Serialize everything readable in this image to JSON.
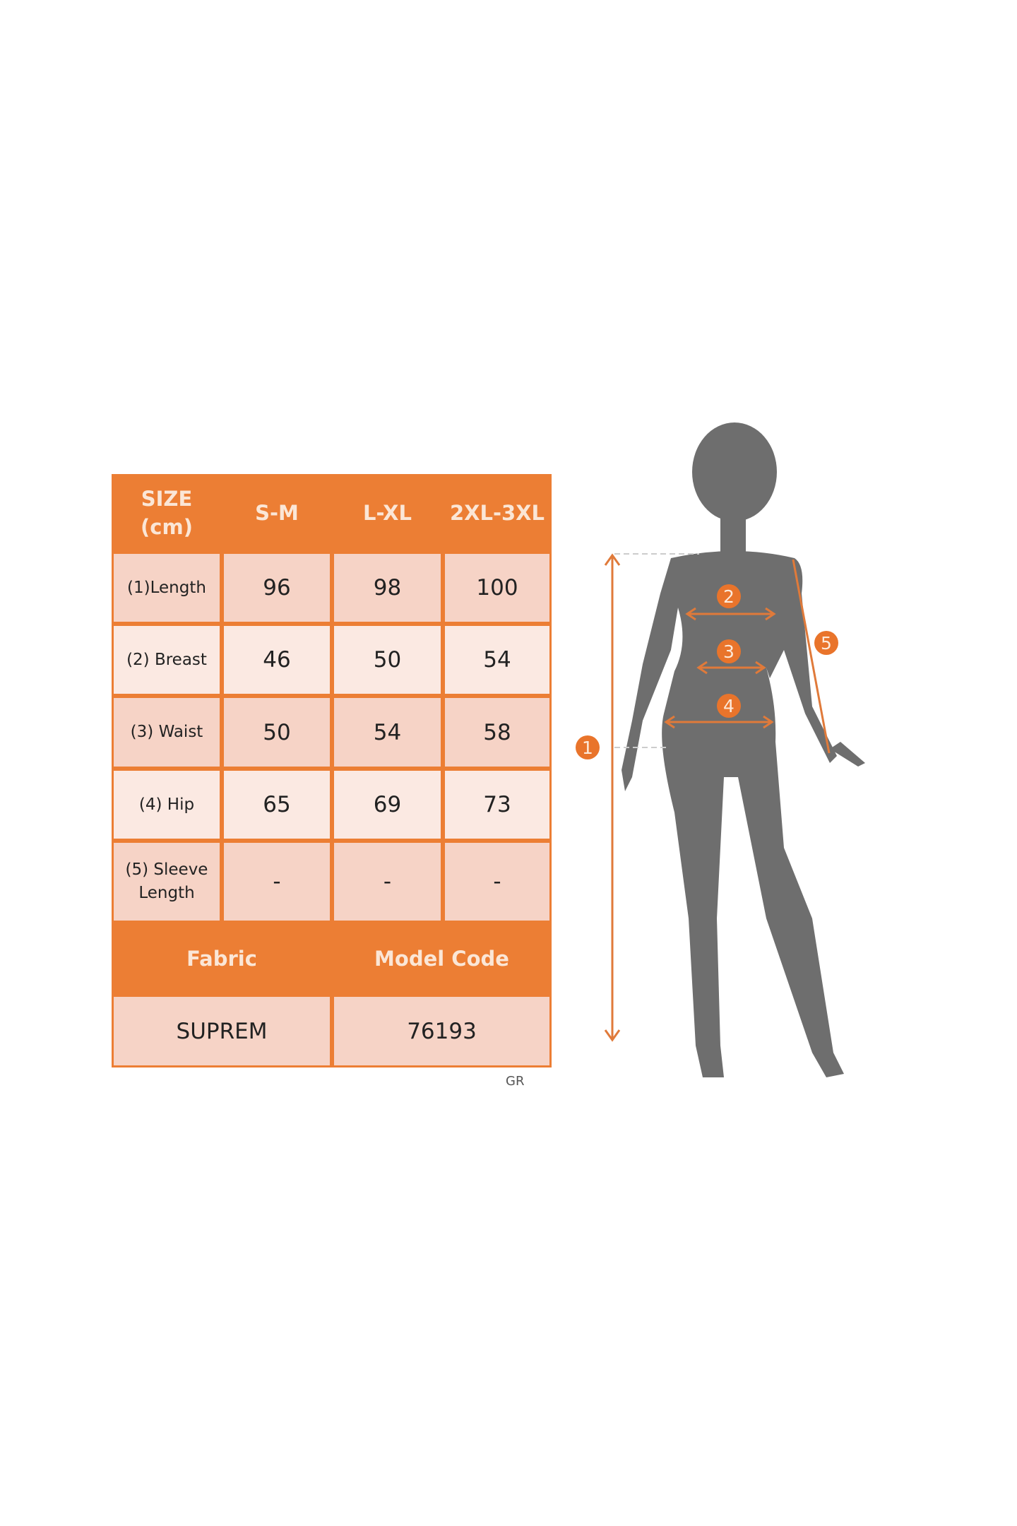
{
  "size_table": {
    "header": {
      "size_label": "SIZE\n(cm)",
      "columns": [
        "S-M",
        "L-XL",
        "2XL-3XL"
      ]
    },
    "rows": [
      {
        "label": "(1)Length",
        "values": [
          "96",
          "98",
          "100"
        ]
      },
      {
        "label": "(2) Breast",
        "values": [
          "46",
          "50",
          "54"
        ]
      },
      {
        "label": "(3) Waist",
        "values": [
          "50",
          "54",
          "58"
        ]
      },
      {
        "label": "(4) Hip",
        "values": [
          "65",
          "69",
          "73"
        ]
      },
      {
        "label": "(5) Sleeve Length",
        "values": [
          "-",
          "-",
          "-"
        ]
      }
    ],
    "info_header": [
      "Fabric",
      "Model Code"
    ],
    "info_values": [
      "SUPREM",
      "76193"
    ]
  },
  "footnote": "GR",
  "figure": {
    "markers": [
      "1",
      "2",
      "3",
      "4",
      "5"
    ]
  },
  "colors": {
    "accent": "#ec7e34",
    "cell_dark": "#f6d3c6",
    "cell_light": "#fbe9e2",
    "silhouette": "#6e6e6e"
  }
}
